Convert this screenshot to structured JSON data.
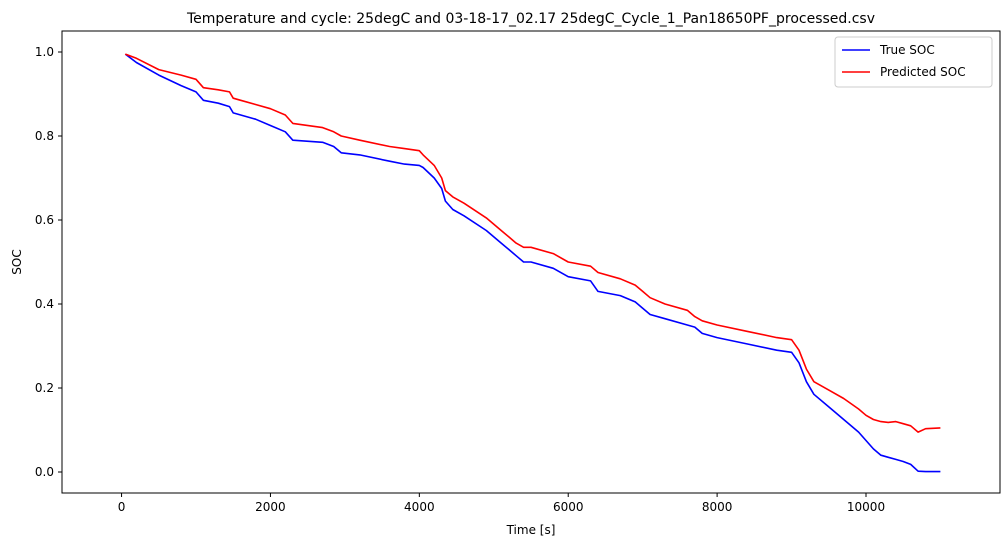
{
  "chart_data": {
    "type": "line",
    "title": "Temperature and cycle: 25degC and 03-18-17_02.17 25degC_Cycle_1_Pan18650PF_processed.csv",
    "xlabel": "Time [s]",
    "ylabel": "SOC",
    "xlim": [
      -800,
      11800
    ],
    "ylim": [
      -0.05,
      1.05
    ],
    "xticks": [
      0,
      2000,
      4000,
      6000,
      8000,
      10000
    ],
    "xtick_labels": [
      "0",
      "2000",
      "4000",
      "6000",
      "8000",
      "10000"
    ],
    "yticks": [
      0.0,
      0.2,
      0.4,
      0.6,
      0.8,
      1.0
    ],
    "ytick_labels": [
      "0.0",
      "0.2",
      "0.4",
      "0.6",
      "0.8",
      "1.0"
    ],
    "grid": false,
    "legend_position": "top-right",
    "series": [
      {
        "name": "True SOC",
        "color": "#0000ff",
        "x": [
          50,
          200,
          500,
          800,
          1000,
          1100,
          1300,
          1450,
          1500,
          1600,
          1800,
          2000,
          2200,
          2300,
          2700,
          2850,
          2950,
          3200,
          3600,
          3800,
          4000,
          4050,
          4200,
          4300,
          4350,
          4450,
          4600,
          4900,
          5100,
          5200,
          5300,
          5400,
          5500,
          5800,
          6000,
          6300,
          6400,
          6700,
          6900,
          7000,
          7100,
          7300,
          7600,
          7700,
          7800,
          8000,
          8400,
          8800,
          9000,
          9100,
          9200,
          9300,
          9500,
          9700,
          9900,
          10000,
          10100,
          10200,
          10300,
          10400,
          10500,
          10600,
          10700,
          10800,
          11000
        ],
        "y": [
          0.995,
          0.975,
          0.945,
          0.92,
          0.905,
          0.885,
          0.878,
          0.87,
          0.855,
          0.85,
          0.84,
          0.825,
          0.81,
          0.79,
          0.785,
          0.775,
          0.76,
          0.755,
          0.74,
          0.733,
          0.73,
          0.725,
          0.7,
          0.675,
          0.645,
          0.625,
          0.61,
          0.575,
          0.545,
          0.53,
          0.515,
          0.5,
          0.5,
          0.485,
          0.465,
          0.455,
          0.43,
          0.42,
          0.405,
          0.39,
          0.375,
          0.365,
          0.35,
          0.345,
          0.33,
          0.32,
          0.305,
          0.29,
          0.285,
          0.26,
          0.215,
          0.185,
          0.155,
          0.125,
          0.095,
          0.075,
          0.055,
          0.04,
          0.035,
          0.03,
          0.025,
          0.018,
          0.002,
          0.001,
          0.001
        ]
      },
      {
        "name": "Predicted SOC",
        "color": "#ff0000",
        "x": [
          50,
          200,
          500,
          800,
          1000,
          1100,
          1300,
          1450,
          1500,
          1600,
          1800,
          2000,
          2200,
          2300,
          2700,
          2850,
          2950,
          3200,
          3600,
          3800,
          4000,
          4050,
          4200,
          4300,
          4350,
          4450,
          4600,
          4900,
          5100,
          5200,
          5300,
          5400,
          5500,
          5800,
          6000,
          6300,
          6400,
          6700,
          6900,
          7000,
          7100,
          7300,
          7600,
          7700,
          7800,
          8000,
          8400,
          8800,
          9000,
          9100,
          9200,
          9300,
          9500,
          9700,
          9900,
          10000,
          10100,
          10200,
          10300,
          10400,
          10500,
          10600,
          10700,
          10800,
          11000
        ],
        "y": [
          0.995,
          0.985,
          0.958,
          0.945,
          0.935,
          0.915,
          0.91,
          0.905,
          0.89,
          0.885,
          0.875,
          0.865,
          0.85,
          0.83,
          0.82,
          0.81,
          0.8,
          0.79,
          0.775,
          0.77,
          0.765,
          0.755,
          0.73,
          0.7,
          0.67,
          0.655,
          0.64,
          0.605,
          0.575,
          0.56,
          0.545,
          0.535,
          0.535,
          0.52,
          0.5,
          0.49,
          0.475,
          0.46,
          0.445,
          0.43,
          0.415,
          0.4,
          0.385,
          0.37,
          0.36,
          0.35,
          0.335,
          0.32,
          0.315,
          0.29,
          0.245,
          0.215,
          0.195,
          0.175,
          0.15,
          0.135,
          0.125,
          0.12,
          0.118,
          0.12,
          0.115,
          0.11,
          0.095,
          0.103,
          0.105
        ]
      }
    ]
  }
}
